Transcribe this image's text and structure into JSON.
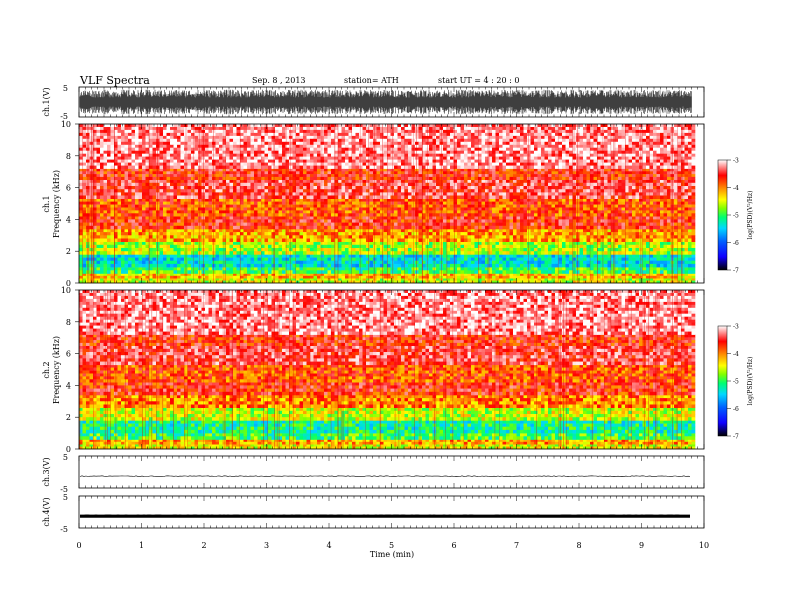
{
  "header": {
    "title": "VLF  Spectra",
    "date": "Sep. 8  , 2013",
    "station": "station= ATH",
    "start": "start  UT  =   4 : 20 : 0"
  },
  "chart_data": [
    {
      "type": "line",
      "panel": "ch1-waveform",
      "ylabel": "ch.1(V)",
      "ylim": [
        -5,
        5
      ],
      "yticks": [
        "5",
        "-5"
      ],
      "xlim": [
        0,
        10
      ],
      "description_values": "dense noise-like waveform filling approx -4 to +4 V across 0–9.8 min"
    },
    {
      "type": "heatmap",
      "panel": "ch1-spectrogram",
      "ylabel": "ch.1\nFrequency  (kHz)",
      "ylabel_lines": [
        "ch.1",
        "Frequency  (kHz)"
      ],
      "ylim": [
        0,
        10
      ],
      "yticks": [
        "0",
        "2",
        "4",
        "6",
        "8",
        "10"
      ],
      "xlim": [
        0,
        10
      ],
      "data_end_min": 9.8,
      "colorbar": {
        "label": "log(PSD)(V²/Hz)",
        "range": [
          -7,
          -3
        ],
        "ticks": [
          "-3",
          "-4",
          "-5",
          "-6",
          "-7"
        ]
      },
      "bands_kHz": [
        {
          "from": 0.0,
          "to": 0.3,
          "level": -4.6
        },
        {
          "from": 0.3,
          "to": 0.6,
          "level": -4.3
        },
        {
          "from": 0.6,
          "to": 1.0,
          "level": -5.0
        },
        {
          "from": 1.0,
          "to": 1.8,
          "level": -5.4
        },
        {
          "from": 1.8,
          "to": 2.6,
          "level": -4.7
        },
        {
          "from": 2.6,
          "to": 3.4,
          "level": -4.2
        },
        {
          "from": 3.4,
          "to": 4.2,
          "level": -3.7
        },
        {
          "from": 4.2,
          "to": 5.3,
          "level": -3.9
        },
        {
          "from": 5.3,
          "to": 6.5,
          "level": -3.5
        },
        {
          "from": 6.5,
          "to": 7.2,
          "level": -3.7
        },
        {
          "from": 7.2,
          "to": 10.0,
          "level": -3.3
        }
      ]
    },
    {
      "type": "heatmap",
      "panel": "ch2-spectrogram",
      "ylabel_lines": [
        "ch.2",
        "Frequency  (kHz)"
      ],
      "ylim": [
        0,
        10
      ],
      "yticks": [
        "0",
        "2",
        "4",
        "6",
        "8",
        "10"
      ],
      "xlim": [
        0,
        10
      ],
      "data_end_min": 9.8,
      "colorbar": {
        "label": "log(PSD)(V²/Hz)",
        "range": [
          -7,
          -3
        ],
        "ticks": [
          "-3",
          "-4",
          "-5",
          "-6",
          "-7"
        ]
      },
      "bands_kHz": [
        {
          "from": 0.0,
          "to": 0.3,
          "level": -4.5
        },
        {
          "from": 0.3,
          "to": 0.6,
          "level": -4.2
        },
        {
          "from": 0.6,
          "to": 1.0,
          "level": -5.0
        },
        {
          "from": 1.0,
          "to": 1.8,
          "level": -5.2
        },
        {
          "from": 1.8,
          "to": 2.6,
          "level": -4.6
        },
        {
          "from": 2.6,
          "to": 3.4,
          "level": -4.1
        },
        {
          "from": 3.4,
          "to": 4.2,
          "level": -3.7
        },
        {
          "from": 4.2,
          "to": 5.3,
          "level": -3.9
        },
        {
          "from": 5.3,
          "to": 6.5,
          "level": -3.5
        },
        {
          "from": 6.5,
          "to": 7.2,
          "level": -3.7
        },
        {
          "from": 7.2,
          "to": 10.0,
          "level": -3.3
        }
      ]
    },
    {
      "type": "line",
      "panel": "ch3-waveform",
      "ylabel": "ch.3(V)",
      "ylim": [
        -5,
        5
      ],
      "yticks": [
        "5",
        "-5"
      ],
      "xlim": [
        0,
        10
      ],
      "baseline_V": -1.3
    },
    {
      "type": "line",
      "panel": "ch4-waveform",
      "ylabel": "ch.4(V)",
      "ylim": [
        -5,
        5
      ],
      "yticks": [
        "5",
        "-5"
      ],
      "xlim": [
        0,
        10
      ],
      "baseline_V": -1.3
    }
  ],
  "xaxis": {
    "label": "Time  (min)",
    "ticks": [
      "0",
      "1",
      "2",
      "3",
      "4",
      "5",
      "6",
      "7",
      "8",
      "9",
      "10"
    ]
  },
  "colors": {
    "colormap": [
      "#000000",
      "#1000ff",
      "#0060ff",
      "#00d8ff",
      "#00ff70",
      "#80ff00",
      "#ffff00",
      "#ff9000",
      "#ff0000",
      "#ffffff"
    ]
  }
}
